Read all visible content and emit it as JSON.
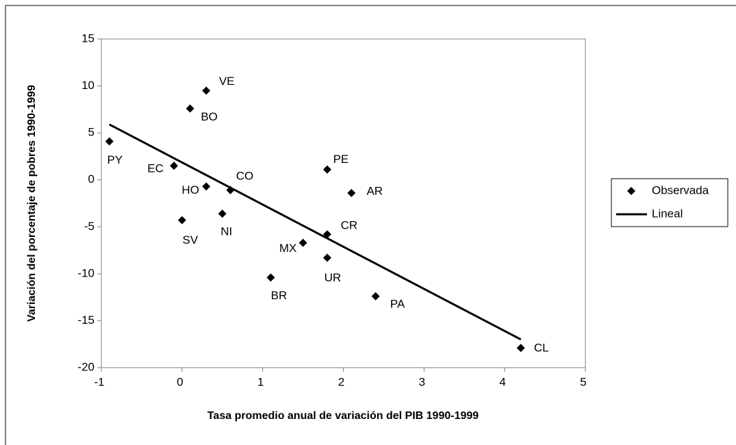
{
  "chart_data": {
    "type": "scatter",
    "x_label": "Tasa promedio anual de variación del PIB 1990-1999",
    "y_label": "Variación del porcentaje de pobres 1990-1999",
    "xlim": [
      -1,
      5
    ],
    "xticks": [
      -1,
      0,
      1,
      2,
      3,
      4,
      5
    ],
    "ylim": [
      -20,
      15
    ],
    "yticks": [
      -20,
      -15,
      -10,
      -5,
      0,
      5,
      10,
      15
    ],
    "grid": false,
    "legend": "right",
    "series": [
      {
        "name": "Observada",
        "color": "#000000",
        "kind": "scatter",
        "labels": [
          "PY",
          "EC",
          "BO",
          "VE",
          "HO",
          "CO",
          "SV",
          "NI",
          "MX",
          "CR",
          "UR",
          "PE",
          "AR",
          "BR",
          "PA",
          "CL"
        ],
        "x": [
          -0.9,
          -0.1,
          0.1,
          0.3,
          0.3,
          0.6,
          0.0,
          0.5,
          1.5,
          1.8,
          1.8,
          1.8,
          2.1,
          1.1,
          2.4,
          4.2
        ],
        "values": [
          4.1,
          1.5,
          7.6,
          9.5,
          -0.7,
          -1.1,
          -4.3,
          -3.6,
          -6.7,
          -5.8,
          -8.3,
          1.1,
          -1.4,
          -10.4,
          -12.4,
          -17.9
        ]
      },
      {
        "name": "Lineal",
        "color": "#000000",
        "kind": "line",
        "x": [
          -0.9,
          4.2
        ],
        "values": [
          5.9,
          -17.0
        ]
      }
    ]
  }
}
